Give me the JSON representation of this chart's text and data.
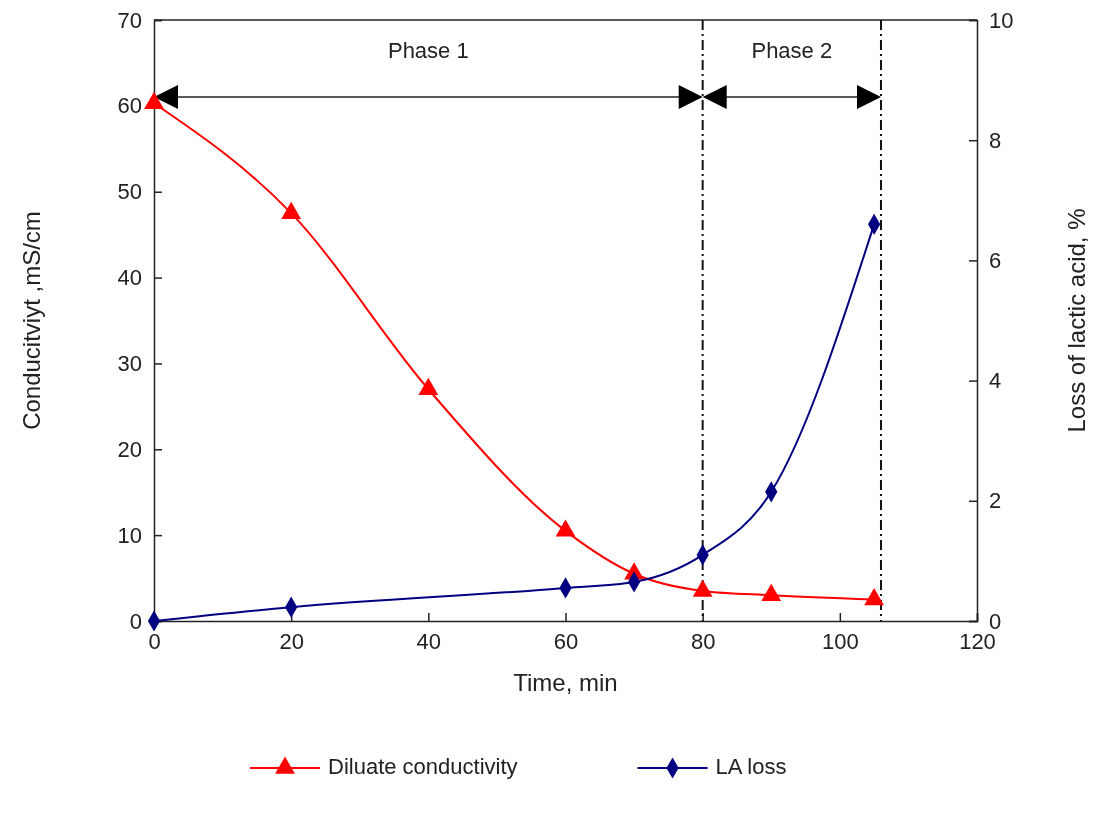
{
  "chart_data": {
    "type": "line",
    "xlabel": "Time, min",
    "ylabel": "Conducitviyt ,mS/cm",
    "y2label": "Loss of  lactic acid, %",
    "xlim": [
      0,
      120
    ],
    "xticks": [
      0,
      20,
      40,
      60,
      80,
      100,
      120
    ],
    "ylim": [
      0,
      70
    ],
    "yticks": [
      0,
      10,
      20,
      30,
      40,
      50,
      60,
      70
    ],
    "y2lim": [
      0,
      10
    ],
    "y2ticks": [
      0,
      2,
      4,
      6,
      8,
      10
    ],
    "series": [
      {
        "name": "Diluate conductivity",
        "color": "#ff0000",
        "marker": "triangle",
        "x": [
          0,
          20,
          40,
          60,
          70,
          80,
          90,
          105
        ],
        "values": [
          60.3,
          47.5,
          27,
          10.5,
          5.5,
          3.5,
          3,
          2.5
        ]
      },
      {
        "name": "LA loss",
        "color": "#000080",
        "marker": "diamond",
        "axis": "y2",
        "x": [
          0,
          20,
          60,
          70,
          80,
          90,
          105
        ],
        "values": [
          0,
          0.23,
          0.55,
          0.65,
          1.1,
          2.15,
          6.6
        ]
      }
    ],
    "ref_lines": [
      {
        "axis": "x",
        "value": 80,
        "line_style": "dashdot"
      },
      {
        "axis": "x",
        "value": 106,
        "line_style": "dashdot"
      }
    ],
    "annotations": [
      "Phase 1",
      "Phase 2"
    ],
    "legend": "bottom"
  }
}
